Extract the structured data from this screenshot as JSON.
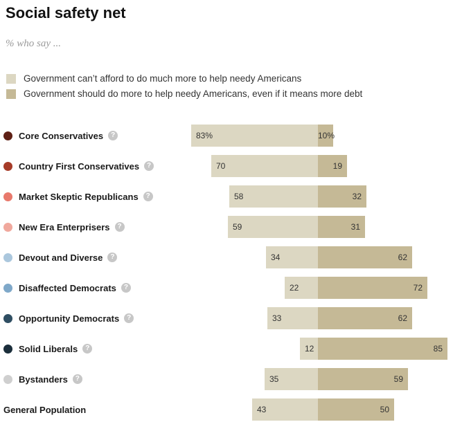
{
  "title": "Social safety net",
  "subtitle": "% who say ...",
  "legend": [
    {
      "label": "Government can’t afford to do much more to help needy Americans",
      "color": "#dcd7c2"
    },
    {
      "label": "Government should do more to help needy Americans, even if it means more debt",
      "color": "#c5b996"
    }
  ],
  "help_icon_glyph": "?",
  "chart_data": {
    "type": "bar",
    "subtype": "horizontal-diverging-stacked",
    "title": "Social safety net",
    "subtitle": "% who say ...",
    "categories": [
      "Core Conservatives",
      "Country First Conservatives",
      "Market Skeptic Republicans",
      "New Era Enterprisers",
      "Devout and Diverse",
      "Disaffected Democrats",
      "Opportunity Democrats",
      "Solid Liberals",
      "Bystanders",
      "General Population"
    ],
    "series": [
      {
        "name": "Government can’t afford to do much more to help needy Americans",
        "color": "#dcd7c2",
        "side": "left",
        "values": [
          83,
          70,
          58,
          59,
          34,
          22,
          33,
          12,
          35,
          43
        ],
        "value_labels": [
          "83%",
          "70",
          "58",
          "59",
          "34",
          "22",
          "33",
          "12",
          "35",
          "43"
        ]
      },
      {
        "name": "Government should do more to help needy Americans, even if it means more debt",
        "color": "#c5b996",
        "side": "right",
        "values": [
          10,
          19,
          32,
          31,
          62,
          72,
          62,
          85,
          59,
          50
        ],
        "value_labels": [
          "10%",
          "19",
          "32",
          "31",
          "62",
          "72",
          "62",
          "85",
          "59",
          "50"
        ]
      }
    ],
    "dot_colors": [
      "#5e2015",
      "#a63b28",
      "#e8796c",
      "#f0a89d",
      "#abc7dd",
      "#7fa8c9",
      "#2f4e62",
      "#1b2e3b",
      "#cfcfcf",
      null
    ],
    "has_help_icon": [
      true,
      true,
      true,
      true,
      true,
      true,
      true,
      true,
      true,
      false
    ],
    "value_unit": "%",
    "axis_range": [
      -100,
      100
    ],
    "grid": false,
    "legend_position": "top-left"
  }
}
